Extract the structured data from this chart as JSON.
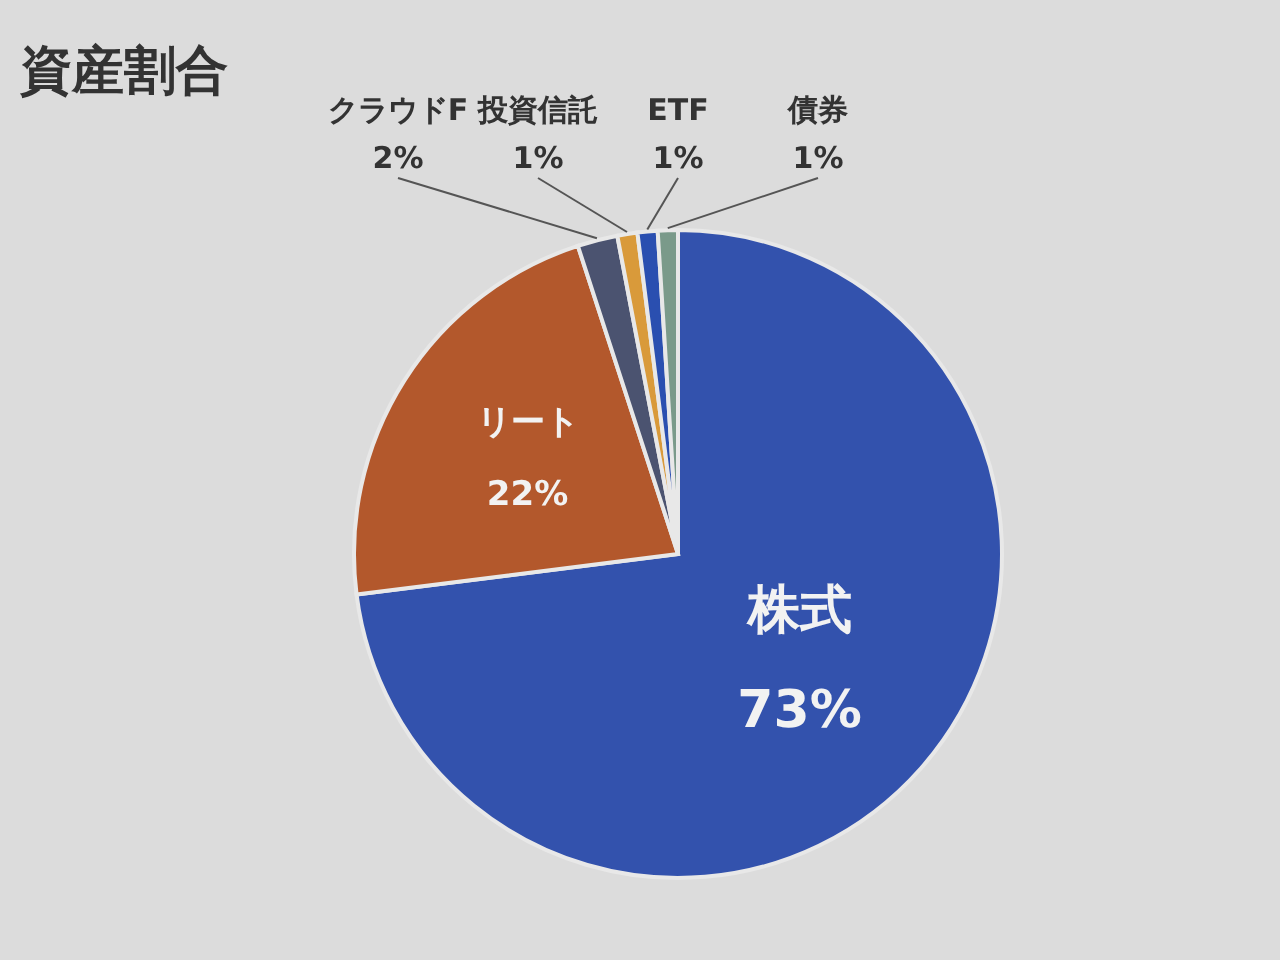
{
  "chart_data": {
    "type": "pie",
    "title": "資産割合",
    "categories": [
      "株式",
      "リート",
      "クラウドF",
      "投資信託",
      "ETF",
      "債券"
    ],
    "values": [
      73,
      22,
      2,
      1,
      1,
      1
    ],
    "colors": [
      "#3352ad",
      "#b3582c",
      "#4b5370",
      "#d99a3a",
      "#2a4fb0",
      "#7a9a8a"
    ],
    "value_labels": [
      "73%",
      "22%",
      "2%",
      "1%",
      "1%",
      "1%"
    ]
  }
}
